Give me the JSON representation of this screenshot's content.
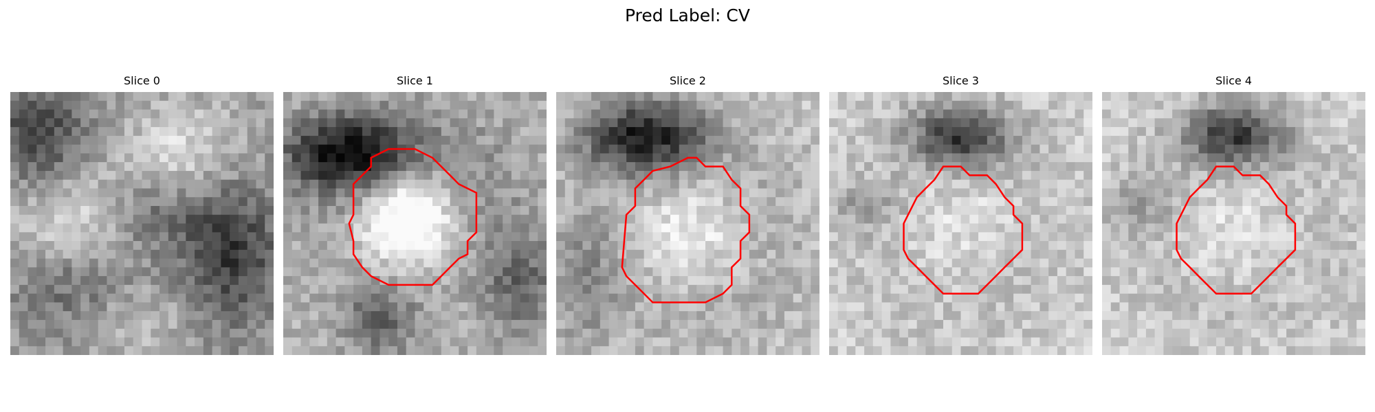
{
  "figure": {
    "title": "Pred Label: CV"
  },
  "panels": [
    {
      "title": "Slice 0",
      "has_contour": false
    },
    {
      "title": "Slice 1",
      "has_contour": true
    },
    {
      "title": "Slice 2",
      "has_contour": true
    },
    {
      "title": "Slice 3",
      "has_contour": true
    },
    {
      "title": "Slice 4",
      "has_contour": true
    }
  ],
  "colors": {
    "contour": "#ff0000",
    "image_colormap": "grayscale"
  }
}
